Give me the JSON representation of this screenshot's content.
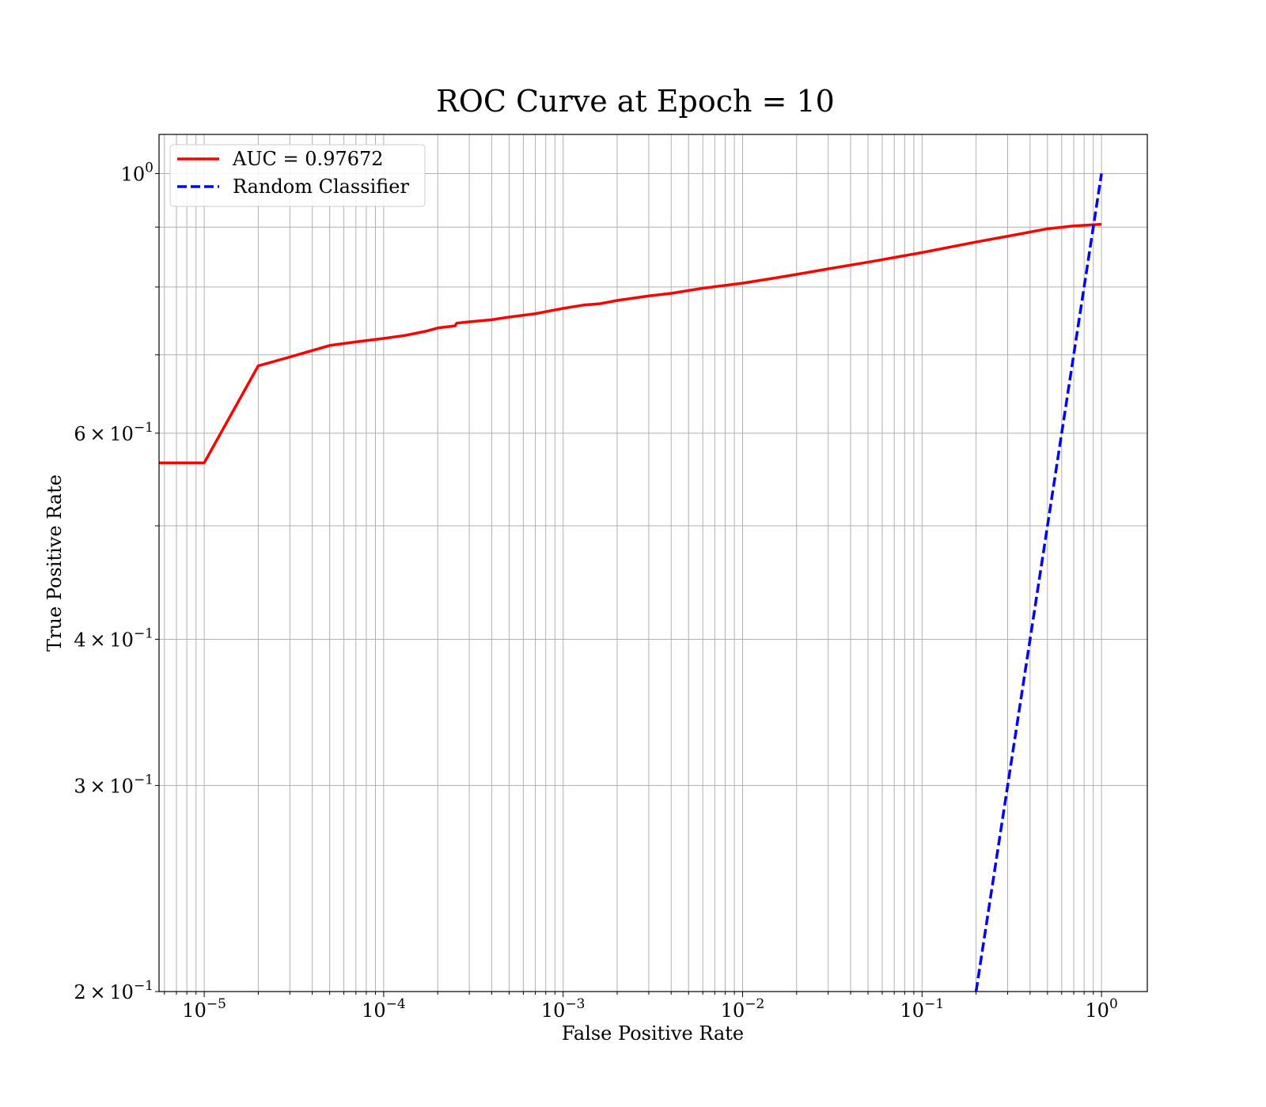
{
  "chart_data": {
    "type": "line",
    "title": "ROC Curve at Epoch = 10",
    "xlabel": "False Positive Rate",
    "ylabel": "True Positive Rate",
    "xscale": "log",
    "yscale": "log",
    "xlim": [
      5.6e-06,
      1.8
    ],
    "ylim": [
      0.2,
      1.08
    ],
    "grid": "both-major-minor",
    "legend_position": "top-left",
    "x_ticks": [
      {
        "mantissa": "",
        "base": "10",
        "exp": "−5",
        "value": 1e-05
      },
      {
        "mantissa": "",
        "base": "10",
        "exp": "−4",
        "value": 0.0001
      },
      {
        "mantissa": "",
        "base": "10",
        "exp": "−3",
        "value": 0.001
      },
      {
        "mantissa": "",
        "base": "10",
        "exp": "−2",
        "value": 0.01
      },
      {
        "mantissa": "",
        "base": "10",
        "exp": "−1",
        "value": 0.1
      },
      {
        "mantissa": "",
        "base": "10",
        "exp": "0",
        "value": 1
      }
    ],
    "y_ticks": [
      {
        "mantissa": "",
        "base": "10",
        "exp": "0",
        "value": 1.0
      },
      {
        "mantissa": "6 × ",
        "base": "10",
        "exp": "−1",
        "value": 0.6
      },
      {
        "mantissa": "4 × ",
        "base": "10",
        "exp": "−1",
        "value": 0.4
      },
      {
        "mantissa": "3 × ",
        "base": "10",
        "exp": "−1",
        "value": 0.3
      },
      {
        "mantissa": "2 × ",
        "base": "10",
        "exp": "−1",
        "value": 0.2
      }
    ],
    "series": [
      {
        "name": "AUC = 0.97672",
        "color": "#ff0000",
        "style": "solid",
        "points": [
          [
            5.6e-06,
            0.566
          ],
          [
            1e-05,
            0.566
          ],
          [
            2e-05,
            0.685
          ],
          [
            3e-05,
            0.697
          ],
          [
            5e-05,
            0.713
          ],
          [
            7e-05,
            0.718
          ],
          [
            0.0001,
            0.723
          ],
          [
            0.00013,
            0.727
          ],
          [
            0.00017,
            0.733
          ],
          [
            0.0002,
            0.738
          ],
          [
            0.00025,
            0.741
          ],
          [
            0.000255,
            0.745
          ],
          [
            0.0003,
            0.747
          ],
          [
            0.0004,
            0.75
          ],
          [
            0.0005,
            0.754
          ],
          [
            0.0007,
            0.759
          ],
          [
            0.0008,
            0.762
          ],
          [
            0.001,
            0.767
          ],
          [
            0.0013,
            0.772
          ],
          [
            0.0016,
            0.774
          ],
          [
            0.002,
            0.779
          ],
          [
            0.003,
            0.786
          ],
          [
            0.004,
            0.79
          ],
          [
            0.006,
            0.798
          ],
          [
            0.01,
            0.806
          ],
          [
            0.015,
            0.814
          ],
          [
            0.02,
            0.82
          ],
          [
            0.03,
            0.829
          ],
          [
            0.05,
            0.84
          ],
          [
            0.1,
            0.856
          ],
          [
            0.2,
            0.874
          ],
          [
            0.3,
            0.884
          ],
          [
            0.5,
            0.897
          ],
          [
            0.7,
            0.902
          ],
          [
            1.0,
            0.905
          ]
        ]
      },
      {
        "name": "Random Classifier",
        "color": "#0000ff",
        "style": "dashed",
        "points": [
          [
            0.2,
            0.2
          ],
          [
            0.3,
            0.3
          ],
          [
            0.4,
            0.4
          ],
          [
            0.6,
            0.6
          ],
          [
            0.8,
            0.8
          ],
          [
            1.0,
            1.0
          ]
        ]
      }
    ]
  }
}
